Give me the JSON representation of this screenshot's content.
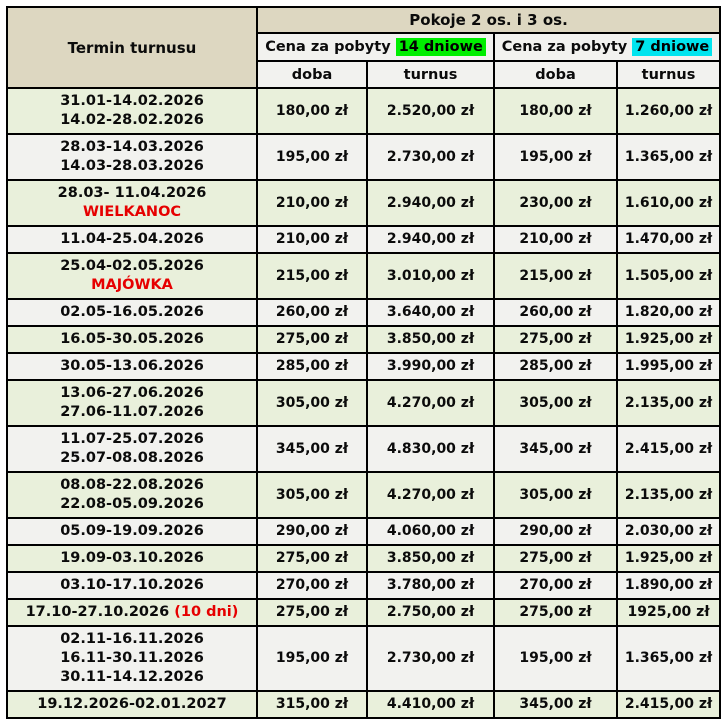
{
  "header": {
    "termin": "Termin turnusu",
    "pokoje": "Pokoje 2 os. i 3 os.",
    "price_groups": [
      {
        "prefix": "Cena za pobyty ",
        "highlight": "14 dniowe",
        "highlight_color": "#00ee00"
      },
      {
        "prefix": "Cena za pobyty ",
        "highlight": "7 dniowe",
        "highlight_color": "#00e4ee"
      }
    ],
    "subheaders": [
      "doba",
      "turnus",
      "doba",
      "turnus"
    ]
  },
  "colors": {
    "header_bg": "#ddd7c1",
    "row_green": "#e9f0db",
    "row_light": "#f2f2ef",
    "border": "#000000",
    "note_red": "#e60000"
  },
  "currency": "zł",
  "rows": [
    {
      "lines": [
        "31.01-14.02.2026",
        "14.02-28.02.2026"
      ],
      "note": null,
      "inline_note": null,
      "prices": [
        "180,00 zł",
        "2.520,00 zł",
        "180,00 zł",
        "1.260,00 zł"
      ],
      "shade": "green"
    },
    {
      "lines": [
        "28.03-14.03.2026",
        "14.03-28.03.2026"
      ],
      "note": null,
      "inline_note": null,
      "prices": [
        "195,00 zł",
        "2.730,00 zł",
        "195,00 zł",
        "1.365,00 zł"
      ],
      "shade": "light"
    },
    {
      "lines": [
        "28.03- 11.04.2026"
      ],
      "note": "WIELKANOC",
      "inline_note": null,
      "prices": [
        "210,00 zł",
        "2.940,00 zł",
        "230,00 zł",
        "1.610,00 zł"
      ],
      "shade": "green"
    },
    {
      "lines": [
        "11.04-25.04.2026"
      ],
      "note": null,
      "inline_note": null,
      "prices": [
        "210,00 zł",
        "2.940,00 zł",
        "210,00 zł",
        "1.470,00 zł"
      ],
      "shade": "light"
    },
    {
      "lines": [
        "25.04-02.05.2026"
      ],
      "note": "MAJÓWKA",
      "inline_note": null,
      "prices": [
        "215,00 zł",
        "3.010,00 zł",
        "215,00 zł",
        "1.505,00 zł"
      ],
      "shade": "green"
    },
    {
      "lines": [
        "02.05-16.05.2026"
      ],
      "note": null,
      "inline_note": null,
      "prices": [
        "260,00 zł",
        "3.640,00 zł",
        "260,00 zł",
        "1.820,00 zł"
      ],
      "shade": "light"
    },
    {
      "lines": [
        "16.05-30.05.2026"
      ],
      "note": null,
      "inline_note": null,
      "prices": [
        "275,00 zł",
        "3.850,00 zł",
        "275,00 zł",
        "1.925,00 zł"
      ],
      "shade": "green"
    },
    {
      "lines": [
        "30.05-13.06.2026"
      ],
      "note": null,
      "inline_note": null,
      "prices": [
        "285,00 zł",
        "3.990,00 zł",
        "285,00 zł",
        "1.995,00 zł"
      ],
      "shade": "light"
    },
    {
      "lines": [
        "13.06-27.06.2026",
        "27.06-11.07.2026"
      ],
      "note": null,
      "inline_note": null,
      "prices": [
        "305,00 zł",
        "4.270,00 zł",
        "305,00 zł",
        "2.135,00 zł"
      ],
      "shade": "green"
    },
    {
      "lines": [
        "11.07-25.07.2026",
        "25.07-08.08.2026"
      ],
      "note": null,
      "inline_note": null,
      "prices": [
        "345,00 zł",
        "4.830,00 zł",
        "345,00 zł",
        "2.415,00 zł"
      ],
      "shade": "light"
    },
    {
      "lines": [
        "08.08-22.08.2026",
        "22.08-05.09.2026"
      ],
      "note": null,
      "inline_note": null,
      "prices": [
        "305,00 zł",
        "4.270,00 zł",
        "305,00 zł",
        "2.135,00 zł"
      ],
      "shade": "green"
    },
    {
      "lines": [
        "05.09-19.09.2026"
      ],
      "note": null,
      "inline_note": null,
      "prices": [
        "290,00 zł",
        "4.060,00 zł",
        "290,00 zł",
        "2.030,00 zł"
      ],
      "shade": "light"
    },
    {
      "lines": [
        "19.09-03.10.2026"
      ],
      "note": null,
      "inline_note": null,
      "prices": [
        "275,00 zł",
        "3.850,00 zł",
        "275,00 zł",
        "1.925,00 zł"
      ],
      "shade": "green"
    },
    {
      "lines": [
        "03.10-17.10.2026"
      ],
      "note": null,
      "inline_note": null,
      "prices": [
        "270,00 zł",
        "3.780,00 zł",
        "270,00 zł",
        "1.890,00 zł"
      ],
      "shade": "light"
    },
    {
      "lines": [
        "17.10-27.10.2026"
      ],
      "note": null,
      "inline_note": "(10 dni)",
      "prices": [
        "275,00 zł",
        "2.750,00 zł",
        "275,00 zł",
        "1925,00 zł"
      ],
      "shade": "green"
    },
    {
      "lines": [
        "02.11-16.11.2026",
        "16.11-30.11.2026",
        "30.11-14.12.2026"
      ],
      "note": null,
      "inline_note": null,
      "prices": [
        "195,00 zł",
        "2.730,00 zł",
        "195,00 zł",
        "1.365,00 zł"
      ],
      "shade": "light"
    },
    {
      "lines": [
        "19.12.2026-02.01.2027"
      ],
      "note": null,
      "inline_note": null,
      "prices": [
        "315,00 zł",
        "4.410,00 zł",
        "345,00 zł",
        "2.415,00 zł"
      ],
      "shade": "green"
    }
  ]
}
